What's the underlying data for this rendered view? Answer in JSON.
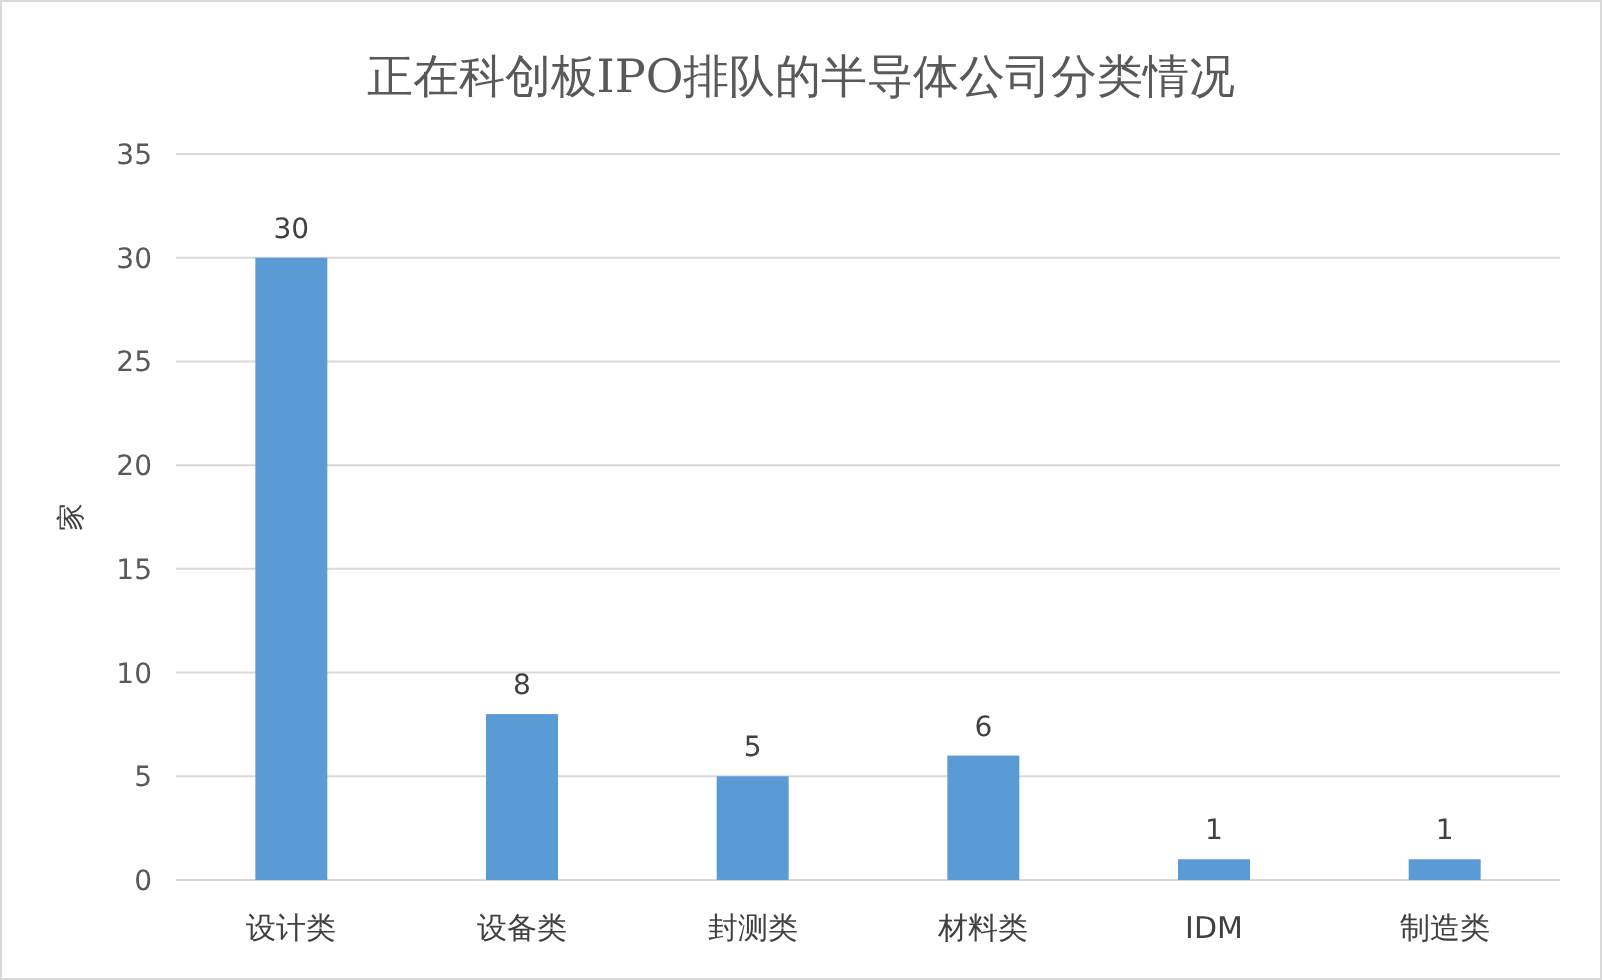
{
  "chart_data": {
    "type": "bar",
    "title": "正在科创板IPO排队的半导体公司分类情况",
    "ylabel": "家",
    "categories": [
      "设计类",
      "设备类",
      "封测类",
      "材料类",
      "IDM",
      "制造类"
    ],
    "values": [
      30,
      8,
      5,
      6,
      1,
      1
    ],
    "color": "#5b9bd5",
    "ylim": [
      0,
      35
    ],
    "yticks": [
      0,
      5,
      10,
      15,
      20,
      25,
      30,
      35
    ],
    "grid": "y",
    "data_labels": true
  }
}
